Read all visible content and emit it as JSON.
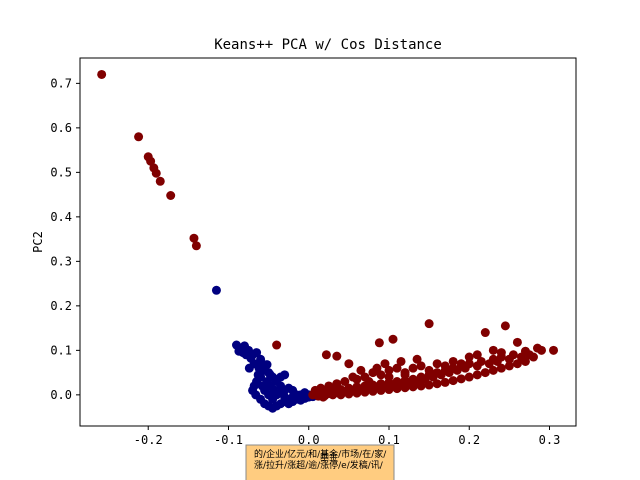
{
  "chart_data": {
    "type": "scatter",
    "title": "Keans++ PCA w/ Cos Distance",
    "xlabel": "",
    "ylabel": "PC2",
    "xlim": [
      -0.285,
      0.333
    ],
    "ylim": [
      -0.07,
      0.757
    ],
    "xticks": [
      -0.2,
      -0.1,
      0.0,
      0.1,
      0.2,
      0.3
    ],
    "xtick_labels": [
      "-0.2",
      "-0.1",
      "0.0",
      "0.1",
      "0.2",
      "0.3"
    ],
    "yticks": [
      0.0,
      0.1,
      0.2,
      0.3,
      0.4,
      0.5,
      0.6,
      0.7
    ],
    "ytick_labels": [
      "0.0",
      "0.1",
      "0.2",
      "0.3",
      "0.4",
      "0.5",
      "0.6",
      "0.7"
    ],
    "grid": false,
    "series": [
      {
        "color": "#000080",
        "points": [
          [
            -0.115,
            0.235
          ],
          [
            -0.09,
            0.112
          ],
          [
            -0.085,
            0.105
          ],
          [
            -0.08,
            0.11
          ],
          [
            -0.075,
            0.1
          ],
          [
            -0.07,
            0.09
          ],
          [
            -0.065,
            0.095
          ],
          [
            -0.06,
            0.08
          ],
          [
            -0.058,
            0.07
          ],
          [
            -0.055,
            0.065
          ],
          [
            -0.052,
            0.068
          ],
          [
            -0.05,
            0.05
          ],
          [
            -0.062,
            0.06
          ],
          [
            -0.068,
            0.07
          ],
          [
            -0.072,
            0.082
          ],
          [
            -0.078,
            0.09
          ],
          [
            -0.082,
            0.095
          ],
          [
            -0.056,
            0.055
          ],
          [
            -0.048,
            0.045
          ],
          [
            -0.045,
            0.04
          ],
          [
            -0.042,
            0.035
          ],
          [
            -0.06,
            0.04
          ],
          [
            -0.065,
            0.03
          ],
          [
            -0.068,
            0.02
          ],
          [
            -0.07,
            0.01
          ],
          [
            -0.066,
            0.0
          ],
          [
            -0.06,
            -0.01
          ],
          [
            -0.055,
            -0.02
          ],
          [
            -0.05,
            -0.025
          ],
          [
            -0.045,
            -0.03
          ],
          [
            -0.04,
            -0.025
          ],
          [
            -0.035,
            -0.02
          ],
          [
            -0.03,
            -0.015
          ],
          [
            -0.025,
            -0.01
          ],
          [
            -0.02,
            -0.005
          ],
          [
            -0.015,
            0.0
          ],
          [
            -0.01,
            0.0
          ],
          [
            -0.005,
            0.005
          ],
          [
            0.0,
            0.0
          ],
          [
            -0.035,
            0.02
          ],
          [
            -0.03,
            0.01
          ],
          [
            -0.025,
            0.015
          ],
          [
            -0.02,
            0.01
          ],
          [
            -0.04,
            0.03
          ],
          [
            -0.035,
            0.04
          ],
          [
            -0.03,
            0.045
          ],
          [
            -0.055,
            0.01
          ],
          [
            -0.05,
            0.0
          ],
          [
            -0.045,
            -0.01
          ],
          [
            -0.04,
            0.0
          ],
          [
            -0.035,
            0.005
          ],
          [
            -0.03,
            -0.005
          ],
          [
            -0.025,
            -0.02
          ],
          [
            -0.02,
            -0.015
          ],
          [
            -0.015,
            -0.01
          ],
          [
            -0.01,
            -0.012
          ],
          [
            -0.005,
            -0.008
          ],
          [
            0.0,
            -0.005
          ],
          [
            0.005,
            -0.004
          ],
          [
            -0.058,
            0.02
          ],
          [
            -0.052,
            0.03
          ],
          [
            -0.048,
            0.02
          ],
          [
            -0.044,
            0.012
          ],
          [
            -0.063,
            0.045
          ],
          [
            -0.074,
            0.06
          ],
          [
            -0.087,
            0.098
          ]
        ]
      },
      {
        "color": "#800000",
        "points": [
          [
            -0.258,
            0.72
          ],
          [
            -0.212,
            0.58
          ],
          [
            -0.2,
            0.535
          ],
          [
            -0.197,
            0.525
          ],
          [
            -0.193,
            0.51
          ],
          [
            -0.19,
            0.498
          ],
          [
            -0.185,
            0.48
          ],
          [
            -0.172,
            0.448
          ],
          [
            -0.143,
            0.352
          ],
          [
            -0.14,
            0.335
          ],
          [
            -0.04,
            0.112
          ],
          [
            0.022,
            0.09
          ],
          [
            0.035,
            0.087
          ],
          [
            0.05,
            0.07
          ],
          [
            0.088,
            0.117
          ],
          [
            0.105,
            0.125
          ],
          [
            0.15,
            0.16
          ],
          [
            0.22,
            0.14
          ],
          [
            0.245,
            0.155
          ],
          [
            0.26,
            0.118
          ],
          [
            0.305,
            0.1
          ],
          [
            0.29,
            0.1
          ],
          [
            0.285,
            0.105
          ],
          [
            0.275,
            0.09
          ],
          [
            0.27,
            0.098
          ],
          [
            0.265,
            0.085
          ],
          [
            0.255,
            0.09
          ],
          [
            0.25,
            0.08
          ],
          [
            0.24,
            0.085
          ],
          [
            0.235,
            0.075
          ],
          [
            0.23,
            0.08
          ],
          [
            0.225,
            0.07
          ],
          [
            0.215,
            0.075
          ],
          [
            0.21,
            0.065
          ],
          [
            0.2,
            0.07
          ],
          [
            0.195,
            0.06
          ],
          [
            0.19,
            0.065
          ],
          [
            0.185,
            0.055
          ],
          [
            0.18,
            0.06
          ],
          [
            0.175,
            0.05
          ],
          [
            0.17,
            0.055
          ],
          [
            0.165,
            0.045
          ],
          [
            0.16,
            0.05
          ],
          [
            0.155,
            0.04
          ],
          [
            0.15,
            0.045
          ],
          [
            0.145,
            0.035
          ],
          [
            0.14,
            0.04
          ],
          [
            0.135,
            0.03
          ],
          [
            0.13,
            0.035
          ],
          [
            0.125,
            0.028
          ],
          [
            0.12,
            0.032
          ],
          [
            0.115,
            0.025
          ],
          [
            0.11,
            0.03
          ],
          [
            0.105,
            0.022
          ],
          [
            0.1,
            0.028
          ],
          [
            0.095,
            0.02
          ],
          [
            0.09,
            0.025
          ],
          [
            0.085,
            0.018
          ],
          [
            0.08,
            0.022
          ],
          [
            0.075,
            0.015
          ],
          [
            0.07,
            0.02
          ],
          [
            0.065,
            0.012
          ],
          [
            0.06,
            0.018
          ],
          [
            0.055,
            0.01
          ],
          [
            0.05,
            0.015
          ],
          [
            0.045,
            0.008
          ],
          [
            0.04,
            0.012
          ],
          [
            0.035,
            0.005
          ],
          [
            0.03,
            0.01
          ],
          [
            0.025,
            0.003
          ],
          [
            0.02,
            0.008
          ],
          [
            0.015,
            0.0
          ],
          [
            0.01,
            0.005
          ],
          [
            0.012,
            -0.003
          ],
          [
            0.02,
            -0.002
          ],
          [
            0.03,
            0.0
          ],
          [
            0.04,
            0.0
          ],
          [
            0.05,
            0.002
          ],
          [
            0.06,
            0.004
          ],
          [
            0.07,
            0.006
          ],
          [
            0.08,
            0.008
          ],
          [
            0.09,
            0.01
          ],
          [
            0.1,
            0.012
          ],
          [
            0.11,
            0.014
          ],
          [
            0.12,
            0.016
          ],
          [
            0.13,
            0.018
          ],
          [
            0.14,
            0.02
          ],
          [
            0.15,
            0.022
          ],
          [
            0.16,
            0.025
          ],
          [
            0.17,
            0.028
          ],
          [
            0.18,
            0.032
          ],
          [
            0.19,
            0.036
          ],
          [
            0.2,
            0.04
          ],
          [
            0.21,
            0.045
          ],
          [
            0.22,
            0.05
          ],
          [
            0.23,
            0.055
          ],
          [
            0.24,
            0.06
          ],
          [
            0.25,
            0.065
          ],
          [
            0.26,
            0.07
          ],
          [
            0.27,
            0.075
          ],
          [
            0.28,
            0.085
          ],
          [
            0.06,
            0.035
          ],
          [
            0.07,
            0.04
          ],
          [
            0.08,
            0.05
          ],
          [
            0.09,
            0.045
          ],
          [
            0.1,
            0.055
          ],
          [
            0.11,
            0.06
          ],
          [
            0.12,
            0.05
          ],
          [
            0.13,
            0.06
          ],
          [
            0.14,
            0.065
          ],
          [
            0.16,
            0.07
          ],
          [
            0.18,
            0.075
          ],
          [
            0.2,
            0.085
          ],
          [
            0.21,
            0.09
          ],
          [
            0.23,
            0.1
          ],
          [
            0.065,
            0.055
          ],
          [
            0.085,
            0.06
          ],
          [
            0.095,
            0.07
          ],
          [
            0.115,
            0.075
          ],
          [
            0.135,
            0.08
          ],
          [
            0.045,
            0.03
          ],
          [
            0.055,
            0.04
          ],
          [
            0.075,
            0.03
          ],
          [
            0.025,
            0.02
          ],
          [
            0.035,
            0.025
          ],
          [
            0.015,
            0.015
          ],
          [
            0.005,
            0.0
          ],
          [
            0.008,
            0.01
          ],
          [
            0.018,
            -0.005
          ],
          [
            0.1,
            0.04
          ],
          [
            0.12,
            0.045
          ],
          [
            0.15,
            0.055
          ],
          [
            0.17,
            0.065
          ],
          [
            0.19,
            0.07
          ],
          [
            0.24,
            0.095
          ]
        ]
      }
    ]
  },
  "annotation": {
    "line1": "的/企业/亿元/和/基金/市场/在/家/",
    "line2": "涨/拉升/涨超/逾/涨停/e/发稿/讯/",
    "overlap_text": "基金"
  }
}
